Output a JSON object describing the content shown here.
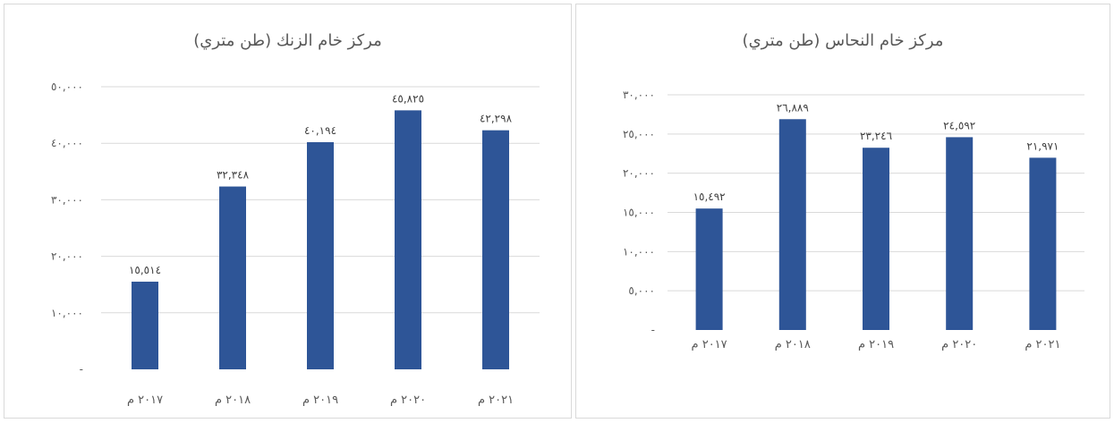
{
  "chart_data": [
    {
      "type": "bar",
      "title": "مركز خام الزنك (طن متري)",
      "categories": [
        "٢٠١٧ م",
        "٢٠١٨ م",
        "٢٠١٩ م",
        "٢٠٢٠ م",
        "٢٠٢١ م"
      ],
      "values": [
        15514,
        32348,
        40194,
        45825,
        42298
      ],
      "data_labels": [
        "١٥,٥١٤",
        "٣٢,٣٤٨",
        "٤٠,١٩٤",
        "٤٥,٨٢٥",
        "٤٢,٢٩٨"
      ],
      "yticks": [
        {
          "value": 0,
          "label": "-"
        },
        {
          "value": 10000,
          "label": "١٠,٠٠٠"
        },
        {
          "value": 20000,
          "label": "٢٠,٠٠٠"
        },
        {
          "value": 30000,
          "label": "٣٠,٠٠٠"
        },
        {
          "value": 40000,
          "label": "٤٠,٠٠٠"
        },
        {
          "value": 50000,
          "label": "٥٠,٠٠٠"
        }
      ],
      "ylim": [
        0,
        50000
      ],
      "grid": true,
      "color": "#2e5597"
    },
    {
      "type": "bar",
      "title": "مركز خام النحاس (طن متري)",
      "categories": [
        "٢٠١٧ م",
        "٢٠١٨ م",
        "٢٠١٩ م",
        "٢٠٢٠ م",
        "٢٠٢١ م"
      ],
      "values": [
        15492,
        26889,
        23246,
        24592,
        21971
      ],
      "data_labels": [
        "١٥,٤٩٢",
        "٢٦,٨٨٩",
        "٢٣,٢٤٦",
        "٢٤,٥٩٢",
        "٢١,٩٧١"
      ],
      "yticks": [
        {
          "value": 0,
          "label": "-"
        },
        {
          "value": 5000,
          "label": "٥,٠٠٠"
        },
        {
          "value": 10000,
          "label": "١٠,٠٠٠"
        },
        {
          "value": 15000,
          "label": "١٥,٠٠٠"
        },
        {
          "value": 20000,
          "label": "٢٠,٠٠٠"
        },
        {
          "value": 25000,
          "label": "٢٥,٠٠٠"
        },
        {
          "value": 30000,
          "label": "٣٠,٠٠٠"
        }
      ],
      "ylim": [
        0,
        30000
      ],
      "grid": true,
      "color": "#2e5597"
    }
  ]
}
